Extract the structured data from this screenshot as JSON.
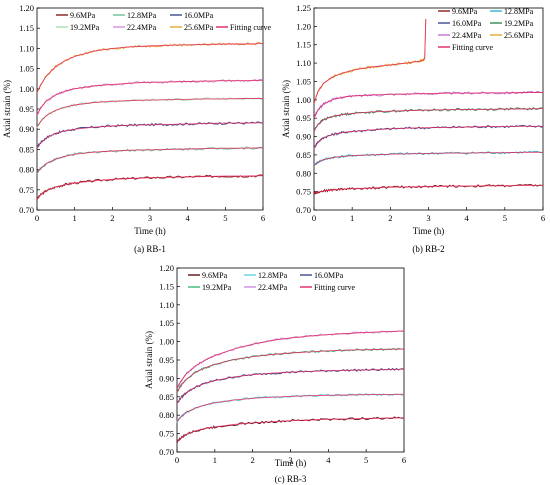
{
  "figure": {
    "panels": [
      {
        "caption": "(a) RB-1",
        "type": "line",
        "xlabel": "Time (h)",
        "ylabel": "Axial strain (%)",
        "xlim": [
          0,
          6
        ],
        "ylim": [
          0.7,
          1.2
        ],
        "xticks": [
          "0",
          "1",
          "2",
          "3",
          "4",
          "5",
          "6"
        ],
        "yticks": [
          "0.70",
          "0.75",
          "0.80",
          "0.85",
          "0.90",
          "0.95",
          "1.00",
          "1.05",
          "1.10",
          "1.15",
          "1.20"
        ],
        "legend": {
          "placement": "top",
          "entries": [
            {
              "label": "9.6MPa",
              "color": "#8b1a1a"
            },
            {
              "label": "12.8MPa",
              "color": "#6fbf9a"
            },
            {
              "label": "16.0MPa",
              "color": "#3a4a8c"
            },
            {
              "label": "19.2MPa",
              "color": "#a7e2b0"
            },
            {
              "label": "22.4MPa",
              "color": "#d58fd8"
            },
            {
              "label": "25.6MPa",
              "color": "#e8a52a"
            },
            {
              "label": "Fitting curve",
              "color": "#e0245a"
            }
          ]
        },
        "series": [
          {
            "name": "9.6MPa",
            "color": "#8b1a1a",
            "x": [
              0,
              0.1,
              0.25,
              0.5,
              0.75,
              1,
              1.5,
              2,
              2.5,
              3,
              3.5,
              4,
              4.5,
              5,
              5.5,
              6
            ],
            "y": [
              0.728,
              0.738,
              0.748,
              0.757,
              0.763,
              0.767,
              0.772,
              0.776,
              0.778,
              0.78,
              0.781,
              0.782,
              0.783,
              0.784,
              0.784,
              0.785
            ]
          },
          {
            "name": "12.8MPa",
            "color": "#6fbf9a",
            "x": [
              0,
              0.1,
              0.25,
              0.5,
              0.75,
              1,
              1.5,
              2,
              2.5,
              3,
              3.5,
              4,
              4.5,
              5,
              5.5,
              6
            ],
            "y": [
              0.792,
              0.803,
              0.815,
              0.826,
              0.833,
              0.838,
              0.843,
              0.846,
              0.848,
              0.849,
              0.85,
              0.851,
              0.852,
              0.853,
              0.853,
              0.854
            ]
          },
          {
            "name": "16.0MPa",
            "color": "#3a4a8c",
            "x": [
              0,
              0.1,
              0.25,
              0.5,
              0.75,
              1,
              1.5,
              2,
              2.5,
              3,
              3.5,
              4,
              4.5,
              5,
              5.5,
              6
            ],
            "y": [
              0.855,
              0.867,
              0.879,
              0.89,
              0.896,
              0.9,
              0.905,
              0.908,
              0.91,
              0.911,
              0.912,
              0.913,
              0.914,
              0.915,
              0.915,
              0.916
            ]
          },
          {
            "name": "19.2MPa",
            "color": "#a7e2b0",
            "x": [
              0,
              0.1,
              0.25,
              0.5,
              0.75,
              1,
              1.5,
              2,
              2.5,
              3,
              3.5,
              4,
              4.5,
              5,
              5.5,
              6
            ],
            "y": [
              0.905,
              0.92,
              0.934,
              0.947,
              0.955,
              0.96,
              0.966,
              0.969,
              0.971,
              0.972,
              0.973,
              0.974,
              0.975,
              0.975,
              0.976,
              0.976
            ]
          },
          {
            "name": "22.4MPa",
            "color": "#d58fd8",
            "x": [
              0,
              0.1,
              0.25,
              0.5,
              0.75,
              1,
              1.5,
              2,
              2.5,
              3,
              3.5,
              4,
              4.5,
              5,
              5.5,
              6
            ],
            "y": [
              0.935,
              0.953,
              0.97,
              0.985,
              0.994,
              1.0,
              1.007,
              1.011,
              1.014,
              1.016,
              1.017,
              1.018,
              1.019,
              1.02,
              1.02,
              1.021
            ]
          },
          {
            "name": "25.6MPa",
            "color": "#e8a52a",
            "x": [
              0,
              0.1,
              0.25,
              0.5,
              0.75,
              1,
              1.5,
              2,
              2.5,
              3,
              3.5,
              4,
              4.5,
              5,
              5.5,
              6
            ],
            "y": [
              0.99,
              1.01,
              1.032,
              1.055,
              1.07,
              1.08,
              1.093,
              1.1,
              1.104,
              1.106,
              1.108,
              1.109,
              1.11,
              1.111,
              1.111,
              1.112
            ]
          }
        ]
      },
      {
        "caption": "(b) RB-2",
        "type": "line",
        "xlabel": "Time (h)",
        "ylabel": "Axial strain (%)",
        "xlim": [
          0,
          6
        ],
        "ylim": [
          0.7,
          1.25
        ],
        "xticks": [
          "0",
          "1",
          "2",
          "3",
          "4",
          "5",
          "6"
        ],
        "yticks": [
          "0.70",
          "0.75",
          "0.80",
          "0.85",
          "0.90",
          "0.95",
          "1.00",
          "1.05",
          "1.10",
          "1.15",
          "1.20",
          "1.25"
        ],
        "legend": {
          "placement": "top-right",
          "entries": [
            {
              "label": "9.6MPa",
              "color": "#8b1a1a"
            },
            {
              "label": "12.8MPa",
              "color": "#2fb7c9"
            },
            {
              "label": "16.0MPa",
              "color": "#3a4a8c"
            },
            {
              "label": "19.2MPa",
              "color": "#2e8b57"
            },
            {
              "label": "22.4MPa",
              "color": "#c56fd8"
            },
            {
              "label": "25.6MPa",
              "color": "#e8a52a"
            },
            {
              "label": "Fitting curve",
              "color": "#e0245a"
            }
          ]
        },
        "series": [
          {
            "name": "9.6MPa",
            "color": "#8b1a1a",
            "x": [
              0,
              0.1,
              0.25,
              0.5,
              0.75,
              1,
              1.5,
              2,
              2.5,
              3,
              3.5,
              4,
              4.5,
              5,
              5.5,
              6
            ],
            "y": [
              0.745,
              0.749,
              0.752,
              0.755,
              0.757,
              0.758,
              0.76,
              0.762,
              0.763,
              0.764,
              0.765,
              0.765,
              0.766,
              0.766,
              0.767,
              0.767
            ]
          },
          {
            "name": "12.8MPa",
            "color": "#2fb7c9",
            "x": [
              0,
              0.1,
              0.25,
              0.5,
              0.75,
              1,
              1.5,
              2,
              2.5,
              3,
              3.5,
              4,
              4.5,
              5,
              5.5,
              6
            ],
            "y": [
              0.822,
              0.83,
              0.837,
              0.843,
              0.846,
              0.848,
              0.85,
              0.852,
              0.853,
              0.854,
              0.855,
              0.855,
              0.856,
              0.856,
              0.857,
              0.857
            ]
          },
          {
            "name": "16.0MPa",
            "color": "#3a4a8c",
            "x": [
              0,
              0.1,
              0.25,
              0.5,
              0.75,
              1,
              1.5,
              2,
              2.5,
              3,
              3.5,
              4,
              4.5,
              5,
              5.5,
              6
            ],
            "y": [
              0.87,
              0.885,
              0.897,
              0.906,
              0.911,
              0.914,
              0.918,
              0.921,
              0.923,
              0.924,
              0.925,
              0.926,
              0.927,
              0.927,
              0.928,
              0.928
            ]
          },
          {
            "name": "19.2MPa",
            "color": "#2e8b57",
            "x": [
              0,
              0.1,
              0.25,
              0.5,
              0.75,
              1,
              1.5,
              2,
              2.5,
              3,
              3.5,
              4,
              4.5,
              5,
              5.5,
              6
            ],
            "y": [
              0.915,
              0.933,
              0.946,
              0.955,
              0.96,
              0.963,
              0.967,
              0.969,
              0.971,
              0.972,
              0.973,
              0.974,
              0.974,
              0.975,
              0.975,
              0.976
            ]
          },
          {
            "name": "22.4MPa",
            "color": "#c56fd8",
            "x": [
              0,
              0.1,
              0.25,
              0.5,
              0.75,
              1,
              1.5,
              2,
              2.5,
              3,
              3.5,
              4,
              4.5,
              5,
              5.5,
              6
            ],
            "y": [
              0.95,
              0.972,
              0.989,
              1.001,
              1.007,
              1.01,
              1.013,
              1.015,
              1.016,
              1.017,
              1.018,
              1.018,
              1.019,
              1.019,
              1.02,
              1.02
            ]
          },
          {
            "name": "25.6MPa",
            "color": "#e8a52a",
            "x": [
              0,
              0.1,
              0.25,
              0.5,
              0.75,
              1,
              1.25,
              1.5,
              1.75,
              2,
              2.25,
              2.5,
              2.75,
              2.85,
              2.9,
              2.93
            ],
            "y": [
              0.99,
              1.022,
              1.045,
              1.063,
              1.073,
              1.08,
              1.085,
              1.089,
              1.092,
              1.095,
              1.098,
              1.101,
              1.105,
              1.107,
              1.112,
              1.22
            ]
          }
        ]
      },
      {
        "caption": "(c) RB-3",
        "type": "line",
        "xlabel": "Time (h)",
        "ylabel": "Axial strain (%)",
        "xlim": [
          0,
          6
        ],
        "ylim": [
          0.7,
          1.2
        ],
        "xticks": [
          "0",
          "1",
          "2",
          "3",
          "4",
          "5",
          "6"
        ],
        "yticks": [
          "0.70",
          "0.75",
          "0.80",
          "0.85",
          "0.90",
          "0.95",
          "1.00",
          "1.05",
          "1.10",
          "1.15",
          "1.20"
        ],
        "legend": {
          "placement": "top",
          "entries": [
            {
              "label": "9.6MPa",
              "color": "#5a1010"
            },
            {
              "label": "12.8MPa",
              "color": "#5fd3e0"
            },
            {
              "label": "16.0MPa",
              "color": "#3a4a8c"
            },
            {
              "label": "19.2MPa",
              "color": "#3cb878"
            },
            {
              "label": "22.4MPa",
              "color": "#c98fe0"
            },
            {
              "label": "Fitting curve",
              "color": "#e0245a"
            }
          ]
        },
        "series": [
          {
            "name": "9.6MPa",
            "color": "#5a1010",
            "x": [
              0,
              0.1,
              0.25,
              0.5,
              0.75,
              1,
              1.5,
              2,
              2.5,
              3,
              3.5,
              4,
              4.5,
              5,
              5.5,
              6
            ],
            "y": [
              0.728,
              0.738,
              0.748,
              0.758,
              0.764,
              0.768,
              0.775,
              0.779,
              0.782,
              0.785,
              0.787,
              0.789,
              0.79,
              0.791,
              0.792,
              0.793
            ]
          },
          {
            "name": "12.8MPa",
            "color": "#5fd3e0",
            "x": [
              0,
              0.1,
              0.25,
              0.5,
              0.75,
              1,
              1.5,
              2,
              2.5,
              3,
              3.5,
              4,
              4.5,
              5,
              5.5,
              6
            ],
            "y": [
              0.782,
              0.795,
              0.808,
              0.82,
              0.828,
              0.834,
              0.841,
              0.846,
              0.849,
              0.851,
              0.853,
              0.854,
              0.855,
              0.856,
              0.856,
              0.857
            ]
          },
          {
            "name": "16.0MPa",
            "color": "#3a4a8c",
            "x": [
              0,
              0.1,
              0.25,
              0.5,
              0.75,
              1,
              1.5,
              2,
              2.5,
              3,
              3.5,
              4,
              4.5,
              5,
              5.5,
              6
            ],
            "y": [
              0.832,
              0.847,
              0.862,
              0.877,
              0.887,
              0.894,
              0.904,
              0.91,
              0.914,
              0.917,
              0.919,
              0.921,
              0.922,
              0.923,
              0.924,
              0.925
            ]
          },
          {
            "name": "19.2MPa",
            "color": "#3cb878",
            "x": [
              0,
              0.1,
              0.25,
              0.5,
              0.75,
              1,
              1.5,
              2,
              2.5,
              3,
              3.5,
              4,
              4.5,
              5,
              5.5,
              6
            ],
            "y": [
              0.862,
              0.88,
              0.898,
              0.917,
              0.929,
              0.938,
              0.951,
              0.959,
              0.965,
              0.969,
              0.972,
              0.975,
              0.977,
              0.978,
              0.979,
              0.98
            ]
          },
          {
            "name": "22.4MPa",
            "color": "#c98fe0",
            "x": [
              0,
              0.1,
              0.25,
              0.5,
              0.75,
              1,
              1.5,
              2,
              2.5,
              3,
              3.5,
              4,
              4.5,
              5,
              5.5,
              6
            ],
            "y": [
              0.872,
              0.892,
              0.913,
              0.935,
              0.95,
              0.962,
              0.98,
              0.993,
              1.003,
              1.01,
              1.015,
              1.019,
              1.022,
              1.025,
              1.027,
              1.029
            ]
          }
        ]
      }
    ]
  }
}
